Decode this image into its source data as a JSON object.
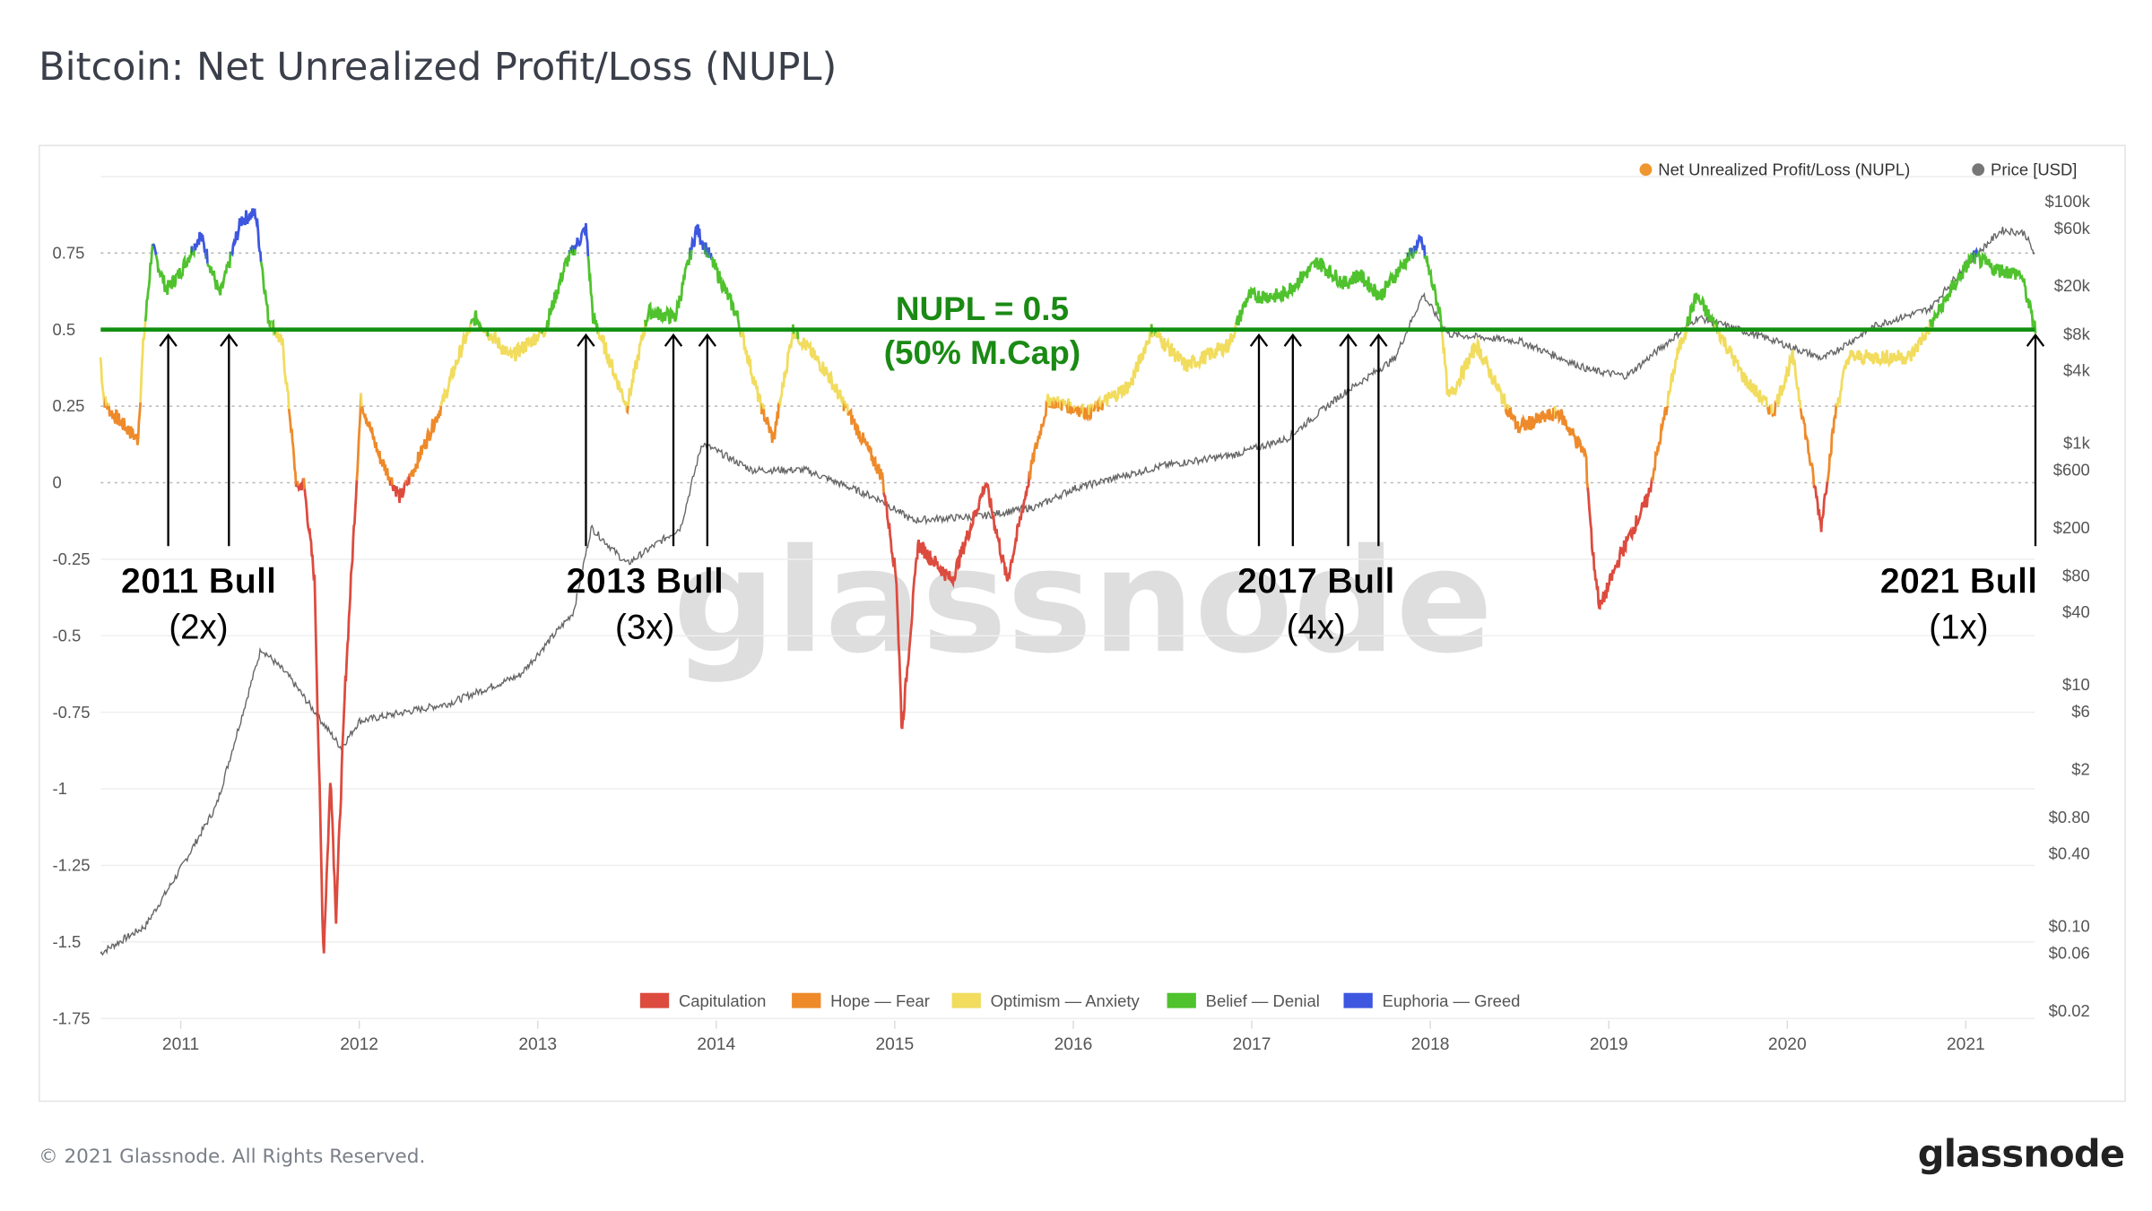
{
  "title": "Bitcoin: Net Unrealized Profit/Loss (NUPL)",
  "footer": "© 2021 Glassnode. All Rights Reserved.",
  "logo": "glassnode",
  "watermark": "glassnode",
  "chart_data": {
    "type": "line",
    "title": "Bitcoin: Net Unrealized Profit/Loss (NUPL)",
    "legend_placement": "top-right",
    "legend": [
      {
        "name": "Net Unrealized Profit/Loss (NUPL)",
        "color": "#f0962f"
      },
      {
        "name": "Price [USD]",
        "color": "#777777"
      }
    ],
    "zones": [
      {
        "name": "Capitulation",
        "range": [
          -10,
          0
        ],
        "color": "#dc4b3e"
      },
      {
        "name": "Hope — Fear",
        "range": [
          0,
          0.25
        ],
        "color": "#ee8a2a"
      },
      {
        "name": "Optimism — Anxiety",
        "range": [
          0.25,
          0.5
        ],
        "color": "#f1dc5e"
      },
      {
        "name": "Belief — Denial",
        "range": [
          0.5,
          0.75
        ],
        "color": "#4fc22d"
      },
      {
        "name": "Euphoria — Greed",
        "range": [
          0.75,
          10
        ],
        "color": "#3d57e0"
      }
    ],
    "x_ticks": [
      "2011",
      "2012",
      "2013",
      "2014",
      "2015",
      "2016",
      "2017",
      "2018",
      "2019",
      "2020",
      "2021"
    ],
    "y_left_ticks": [
      "0.75",
      "0.5",
      "0.25",
      "0",
      "-0.25",
      "-0.5",
      "-0.75",
      "-1",
      "-1.25",
      "-1.5",
      "-1.75"
    ],
    "y_left_range": [
      -1.75,
      0.9
    ],
    "y_right_ticks": [
      "$100k",
      "$60k",
      "$20k",
      "$8k",
      "$4k",
      "$1k",
      "$600",
      "$200",
      "$80",
      "$40",
      "$10",
      "$6",
      "$2",
      "$0.80",
      "$0.40",
      "$0.10",
      "$0.06",
      "$0.02"
    ],
    "y_right_scale": "log",
    "y_right_range": [
      0.02,
      100000
    ],
    "grid": true,
    "series": [
      {
        "name": "Net Unrealized Profit/Loss (NUPL)",
        "axis": "left",
        "x": [
          2010.55,
          2010.57,
          2010.61,
          2010.76,
          2010.79,
          2010.84,
          2010.92,
          2010.99,
          2011.11,
          2011.22,
          2011.34,
          2011.42,
          2011.49,
          2011.57,
          2011.61,
          2011.65,
          2011.69,
          2011.75,
          2011.8,
          2011.84,
          2011.87,
          2011.92,
          2012.01,
          2012.11,
          2012.23,
          2012.31,
          2012.46,
          2012.58,
          2012.65,
          2012.85,
          2013.04,
          2013.16,
          2013.27,
          2013.31,
          2013.5,
          2013.62,
          2013.77,
          2013.89,
          2014.01,
          2014.12,
          2014.24,
          2014.32,
          2014.43,
          2014.62,
          2014.74,
          2014.93,
          2015.01,
          2015.04,
          2015.13,
          2015.32,
          2015.51,
          2015.63,
          2015.78,
          2015.86,
          2016.09,
          2016.32,
          2016.44,
          2016.63,
          2016.87,
          2016.98,
          2017.17,
          2017.37,
          2017.52,
          2017.6,
          2017.72,
          2017.83,
          2017.95,
          2018.06,
          2018.1,
          2018.26,
          2018.41,
          2018.49,
          2018.72,
          2018.87,
          2018.91,
          2018.95,
          2019.07,
          2019.22,
          2019.3,
          2019.38,
          2019.49,
          2019.61,
          2019.76,
          2019.92,
          2020.03,
          2020.19,
          2020.27,
          2020.34,
          2020.5,
          2020.69,
          2020.81,
          2020.92,
          2021.04,
          2021.15,
          2021.31,
          2021.39
        ],
        "values": [
          0.41,
          0.27,
          0.23,
          0.14,
          0.45,
          0.77,
          0.63,
          0.68,
          0.81,
          0.61,
          0.86,
          0.88,
          0.54,
          0.45,
          0.23,
          -0.02,
          0.0,
          -0.32,
          -1.55,
          -0.95,
          -1.42,
          -0.68,
          0.27,
          0.09,
          -0.05,
          0.05,
          0.25,
          0.45,
          0.54,
          0.41,
          0.5,
          0.72,
          0.83,
          0.54,
          0.25,
          0.56,
          0.54,
          0.83,
          0.68,
          0.54,
          0.27,
          0.14,
          0.5,
          0.36,
          0.23,
          0.02,
          -0.32,
          -0.81,
          -0.2,
          -0.32,
          0.0,
          -0.32,
          0.09,
          0.27,
          0.23,
          0.32,
          0.5,
          0.38,
          0.45,
          0.61,
          0.61,
          0.72,
          0.65,
          0.68,
          0.61,
          0.7,
          0.79,
          0.54,
          0.27,
          0.45,
          0.27,
          0.18,
          0.23,
          0.09,
          -0.23,
          -0.41,
          -0.23,
          -0.05,
          0.18,
          0.41,
          0.61,
          0.5,
          0.34,
          0.23,
          0.41,
          -0.14,
          0.23,
          0.41,
          0.41,
          0.41,
          0.52,
          0.63,
          0.74,
          0.7,
          0.68,
          0.5
        ]
      },
      {
        "name": "Price [USD]",
        "axis": "right",
        "x": [
          2010.55,
          2010.8,
          2011.0,
          2011.2,
          2011.45,
          2011.6,
          2011.9,
          2012.0,
          2012.5,
          2012.9,
          2013.2,
          2013.3,
          2013.5,
          2013.8,
          2013.92,
          2014.2,
          2014.5,
          2014.9,
          2015.1,
          2015.5,
          2015.8,
          2016.0,
          2016.5,
          2016.9,
          2017.2,
          2017.5,
          2017.8,
          2017.96,
          2018.1,
          2018.5,
          2018.9,
          2019.1,
          2019.5,
          2019.9,
          2020.2,
          2020.5,
          2020.8,
          2021.0,
          2021.2,
          2021.33,
          2021.39
        ],
        "values": [
          0.06,
          0.1,
          0.3,
          1,
          20,
          12,
          3,
          5,
          7,
          12,
          40,
          200,
          100,
          200,
          1000,
          600,
          600,
          350,
          230,
          250,
          300,
          420,
          650,
          800,
          1100,
          2500,
          5000,
          17000,
          8000,
          7000,
          4000,
          3600,
          11000,
          7300,
          5000,
          9500,
          13000,
          30000,
          58000,
          55000,
          35000
        ]
      }
    ],
    "annotations": {
      "threshold": {
        "value": 0.5,
        "line1": "NUPL = 0.5",
        "line2": "(50% M.Cap)",
        "color": "#1a8a14"
      },
      "bulls": [
        {
          "label": "2011 Bull",
          "count": "(2x)",
          "label_x": 2011.1,
          "arrows": [
            2010.93,
            2011.27
          ]
        },
        {
          "label": "2013 Bull",
          "count": "(3x)",
          "label_x": 2013.6,
          "arrows": [
            2013.27,
            2013.76,
            2013.95
          ]
        },
        {
          "label": "2017 Bull",
          "count": "(4x)",
          "label_x": 2017.36,
          "arrows": [
            2017.04,
            2017.23,
            2017.54,
            2017.71
          ]
        },
        {
          "label": "2021 Bull",
          "count": "(1x)",
          "label_x": 2020.96,
          "arrows": [
            2021.39
          ]
        }
      ]
    }
  }
}
